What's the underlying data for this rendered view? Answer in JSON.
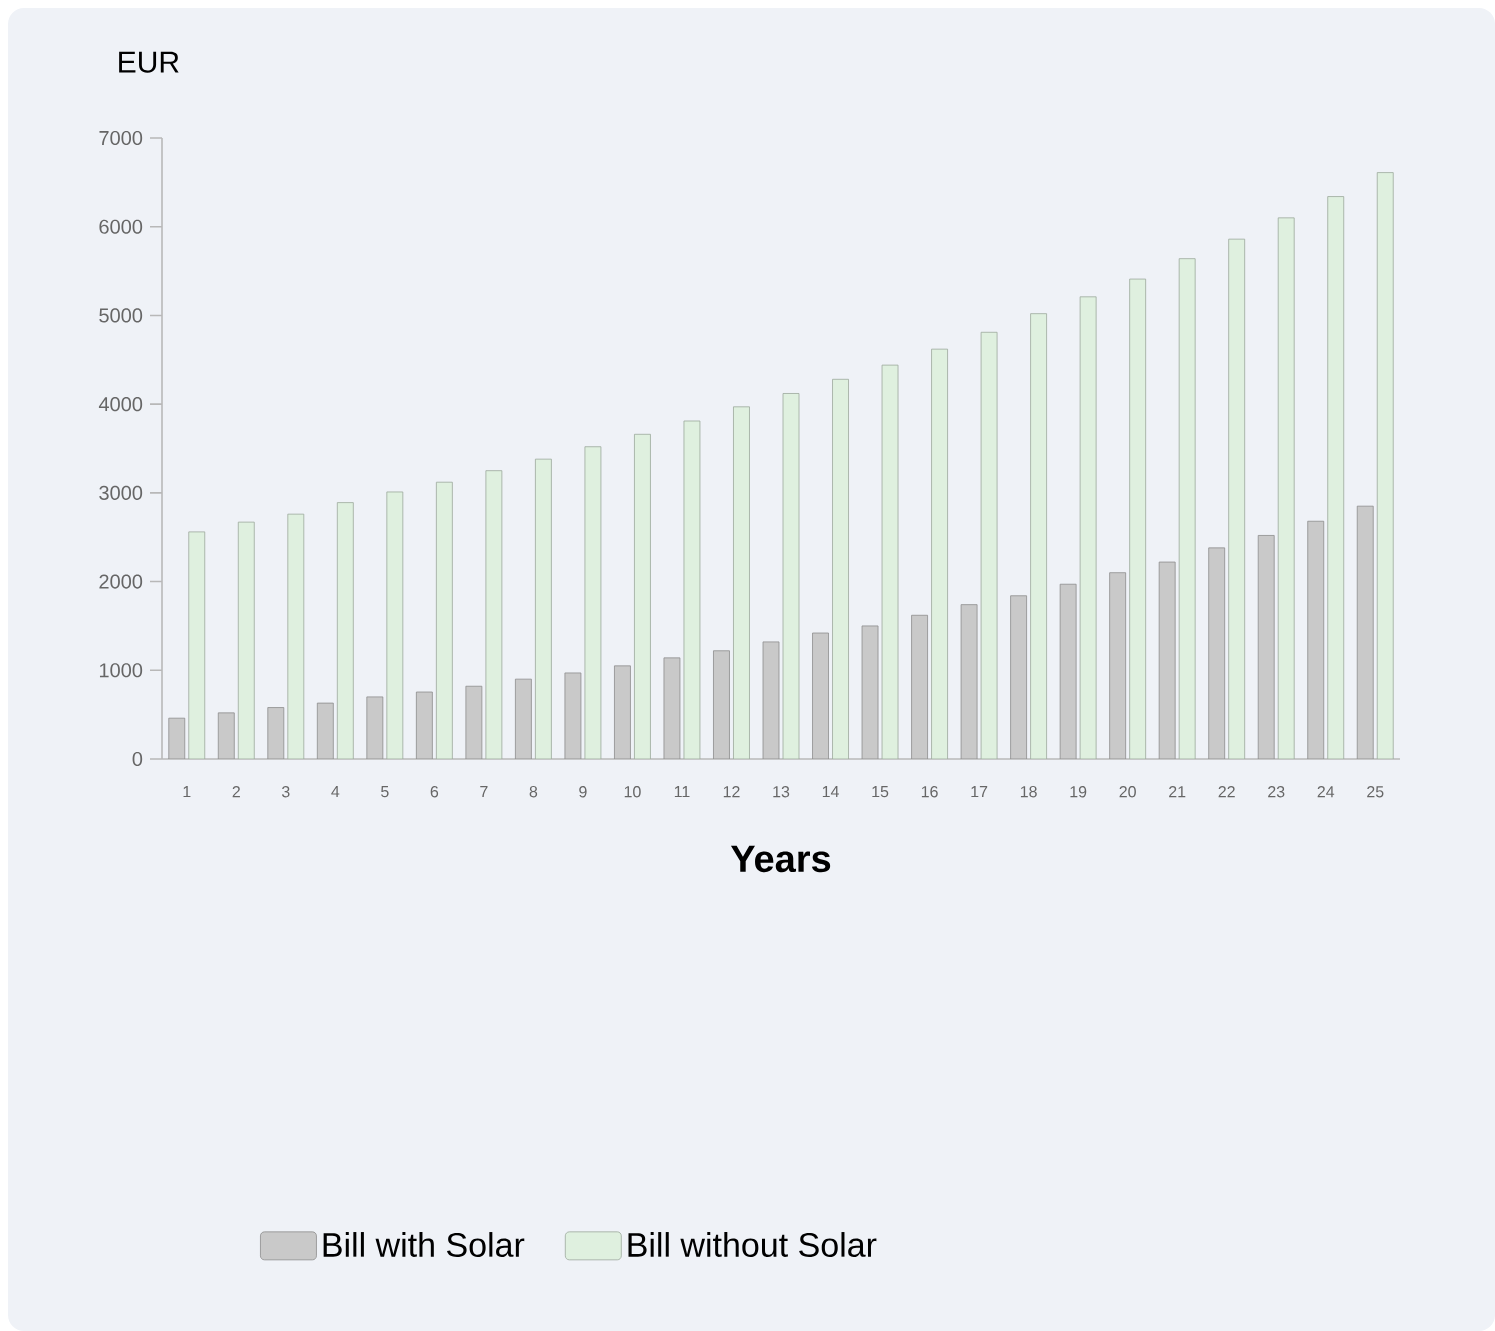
{
  "chart_data": {
    "type": "bar",
    "ylabel": "EUR",
    "xlabel": "Years",
    "categories": [
      "1",
      "2",
      "3",
      "4",
      "5",
      "6",
      "7",
      "8",
      "9",
      "10",
      "11",
      "12",
      "13",
      "14",
      "15",
      "16",
      "17",
      "18",
      "19",
      "20",
      "21",
      "22",
      "23",
      "24",
      "25"
    ],
    "series": [
      {
        "name": "Bill with Solar",
        "color": "#c9c9c9",
        "values": [
          460,
          520,
          580,
          630,
          700,
          755,
          820,
          900,
          970,
          1050,
          1140,
          1220,
          1320,
          1420,
          1500,
          1620,
          1740,
          1840,
          1970,
          2100,
          2220,
          2380,
          2520,
          2680,
          2850
        ]
      },
      {
        "name": "Bill without Solar",
        "color": "#dff0df",
        "values": [
          2560,
          2670,
          2760,
          2890,
          3010,
          3120,
          3250,
          3380,
          3520,
          3660,
          3810,
          3970,
          4120,
          4280,
          4440,
          4620,
          4810,
          5020,
          5210,
          5410,
          5640,
          5860,
          6100,
          6340,
          6610
        ]
      }
    ],
    "ylim": [
      0,
      7000
    ],
    "yticks": [
      0,
      1000,
      2000,
      3000,
      4000,
      5000,
      6000,
      7000
    ],
    "grid": false,
    "legend": "bottom"
  }
}
